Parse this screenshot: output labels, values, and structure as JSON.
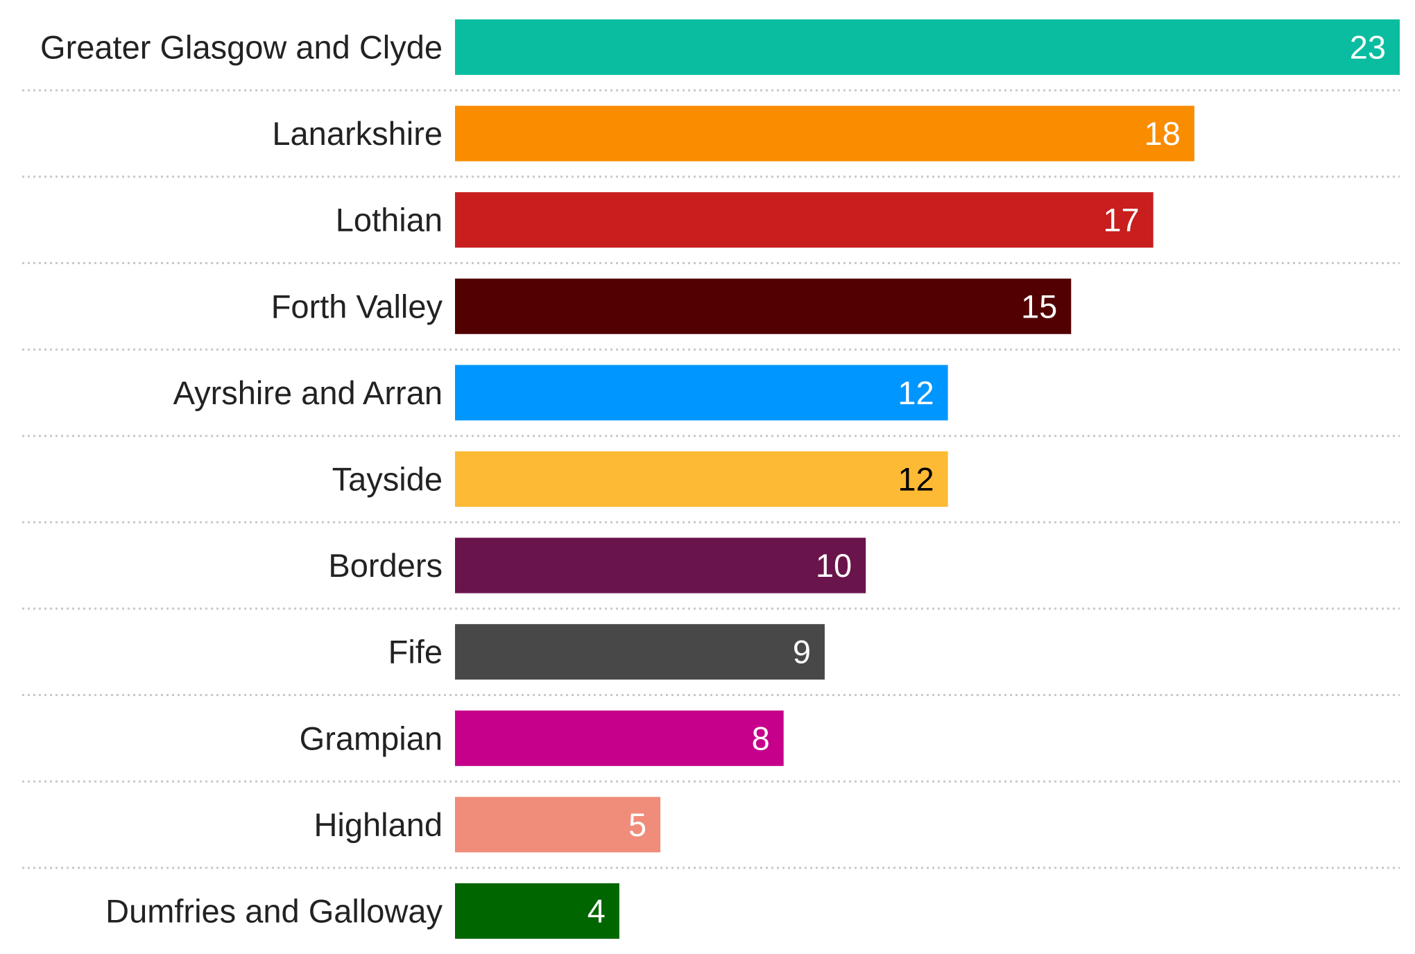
{
  "chart_data": {
    "type": "bar",
    "orientation": "horizontal",
    "title": "",
    "xlabel": "",
    "ylabel": "",
    "xlim": [
      0,
      23
    ],
    "grid": false,
    "legend": "none",
    "categories": [
      "Greater Glasgow and Clyde",
      "Lanarkshire",
      "Lothian",
      "Forth Valley",
      "Ayrshire and Arran",
      "Tayside",
      "Borders",
      "Fife",
      "Grampian",
      "Highland",
      "Dumfries and Galloway"
    ],
    "values": [
      23,
      18,
      17,
      15,
      12,
      12,
      10,
      9,
      8,
      5,
      4
    ],
    "colors": [
      "#0ABDA0",
      "#FA8C00",
      "#C81E1E",
      "#520000",
      "#0096FF",
      "#FDBA35",
      "#6A144C",
      "#484848",
      "#C6008A",
      "#F08C7A",
      "#006600"
    ],
    "value_label_colors": [
      "#ffffff",
      "#ffffff",
      "#ffffff",
      "#ffffff",
      "#ffffff",
      "#000000",
      "#ffffff",
      "#ffffff",
      "#ffffff",
      "#ffffff",
      "#ffffff"
    ]
  }
}
